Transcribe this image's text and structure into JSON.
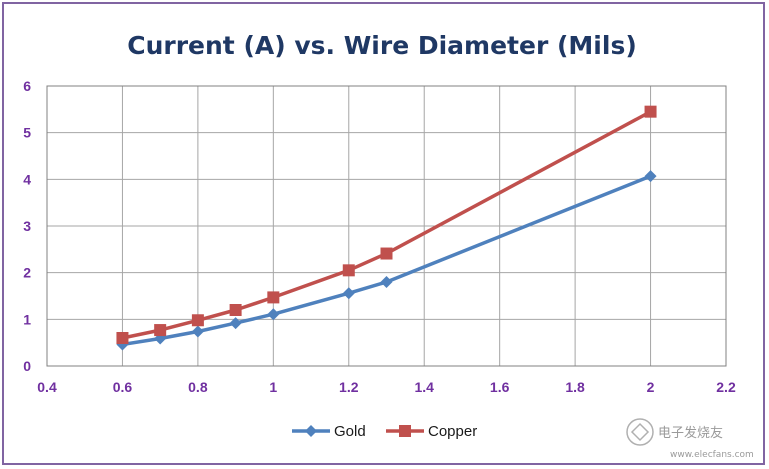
{
  "chart_data": {
    "type": "line",
    "title": "Current (A) vs. Wire Diameter (Mils)",
    "xlabel": "",
    "ylabel": "",
    "xlim": [
      0.4,
      2.2
    ],
    "ylim": [
      0,
      6
    ],
    "xticks": [
      "0.4",
      "0.6",
      "0.8",
      "1",
      "1.2",
      "1.4",
      "1.6",
      "1.8",
      "2",
      "2.2"
    ],
    "yticks": [
      "0",
      "1",
      "2",
      "3",
      "4",
      "5",
      "6"
    ],
    "grid": true,
    "legend": "bottom",
    "series": [
      {
        "name": "Gold",
        "color": "#4f81bd",
        "marker": "diamond",
        "x": [
          0.6,
          0.7,
          0.8,
          0.9,
          1.0,
          1.2,
          1.3,
          2.0
        ],
        "y": [
          0.46,
          0.59,
          0.74,
          0.92,
          1.11,
          1.56,
          1.8,
          4.07
        ]
      },
      {
        "name": "Copper",
        "color": "#c0504d",
        "marker": "square",
        "x": [
          0.6,
          0.7,
          0.8,
          0.9,
          1.0,
          1.2,
          1.3,
          2.0
        ],
        "y": [
          0.6,
          0.77,
          0.98,
          1.2,
          1.47,
          2.05,
          2.41,
          5.45
        ]
      }
    ]
  },
  "watermark": {
    "text": "电子发烧友",
    "url": "www.elecfans.com"
  }
}
